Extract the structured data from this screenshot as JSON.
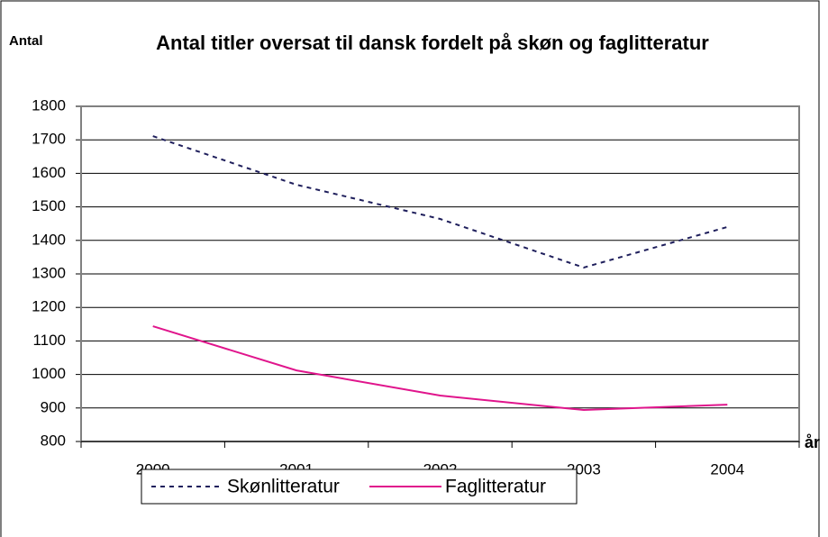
{
  "chart_data": {
    "type": "line",
    "title": "Antal titler oversat til dansk fordelt på skøn og faglitteratur",
    "y_label": "Antal",
    "x_label": "år",
    "categories": [
      "2000",
      "2001",
      "2002",
      "2003",
      "2004"
    ],
    "series": [
      {
        "name": "Skønlitteratur",
        "color": "#1f1f5c",
        "dashed": true,
        "values": [
          1711,
          1566,
          1464,
          1319,
          1440
        ]
      },
      {
        "name": "Faglitteratur",
        "color": "#e0158c",
        "dashed": false,
        "values": [
          1144,
          1012,
          937,
          894,
          910
        ]
      }
    ],
    "ylim": [
      800,
      1800
    ],
    "yticks": [
      800,
      900,
      1000,
      1100,
      1200,
      1300,
      1400,
      1500,
      1600,
      1700,
      1800
    ],
    "grid": true,
    "legend": "bottom"
  }
}
